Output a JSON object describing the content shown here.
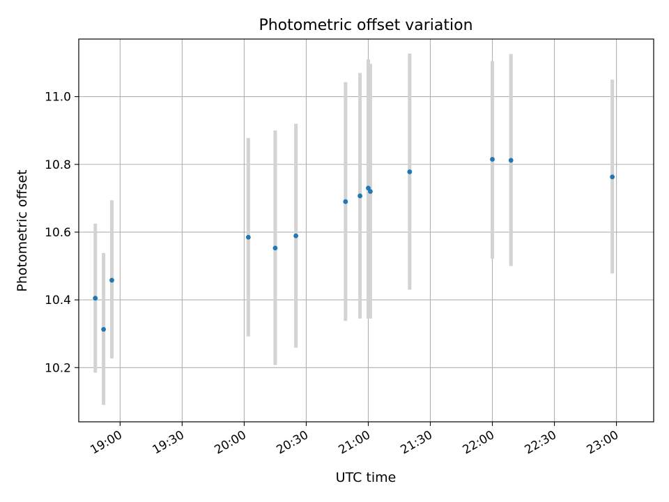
{
  "chart_data": {
    "type": "scatter",
    "title": "Photometric offset variation",
    "xlabel": "UTC time",
    "ylabel": "Photometric offset",
    "x_ticks": [
      "19:00",
      "19:30",
      "20:00",
      "20:30",
      "21:00",
      "21:30",
      "22:00",
      "22:30",
      "23:00"
    ],
    "y_ticks": [
      "10.2",
      "10.4",
      "10.6",
      "10.8",
      "11.0"
    ],
    "xlim": [
      "18:40",
      "23:18"
    ],
    "ylim": [
      10.04,
      11.17
    ],
    "grid": true,
    "colors": {
      "points": "#1f77b4",
      "errorbars": "#d3d3d3",
      "grid": "#b0b0b0",
      "axes": "#000000"
    },
    "points": [
      {
        "x": "18:48",
        "y": 10.405,
        "ylow": 10.185,
        "yhigh": 10.625
      },
      {
        "x": "18:52",
        "y": 10.313,
        "ylow": 10.09,
        "yhigh": 10.538
      },
      {
        "x": "18:56",
        "y": 10.458,
        "ylow": 10.227,
        "yhigh": 10.694
      },
      {
        "x": "20:02",
        "y": 10.585,
        "ylow": 10.292,
        "yhigh": 10.878
      },
      {
        "x": "20:15",
        "y": 10.553,
        "ylow": 10.208,
        "yhigh": 10.9
      },
      {
        "x": "20:25",
        "y": 10.589,
        "ylow": 10.259,
        "yhigh": 10.92
      },
      {
        "x": "20:49",
        "y": 10.69,
        "ylow": 10.338,
        "yhigh": 11.043
      },
      {
        "x": "20:56",
        "y": 10.707,
        "ylow": 10.345,
        "yhigh": 11.07
      },
      {
        "x": "21:00",
        "y": 10.73,
        "ylow": 10.345,
        "yhigh": 11.11
      },
      {
        "x": "21:01",
        "y": 10.72,
        "ylow": 10.345,
        "yhigh": 11.097
      },
      {
        "x": "21:20",
        "y": 10.778,
        "ylow": 10.43,
        "yhigh": 11.127
      },
      {
        "x": "22:00",
        "y": 10.815,
        "ylow": 10.522,
        "yhigh": 11.105
      },
      {
        "x": "22:09",
        "y": 10.812,
        "ylow": 10.5,
        "yhigh": 11.126
      },
      {
        "x": "22:58",
        "y": 10.763,
        "ylow": 10.478,
        "yhigh": 11.05
      }
    ]
  }
}
